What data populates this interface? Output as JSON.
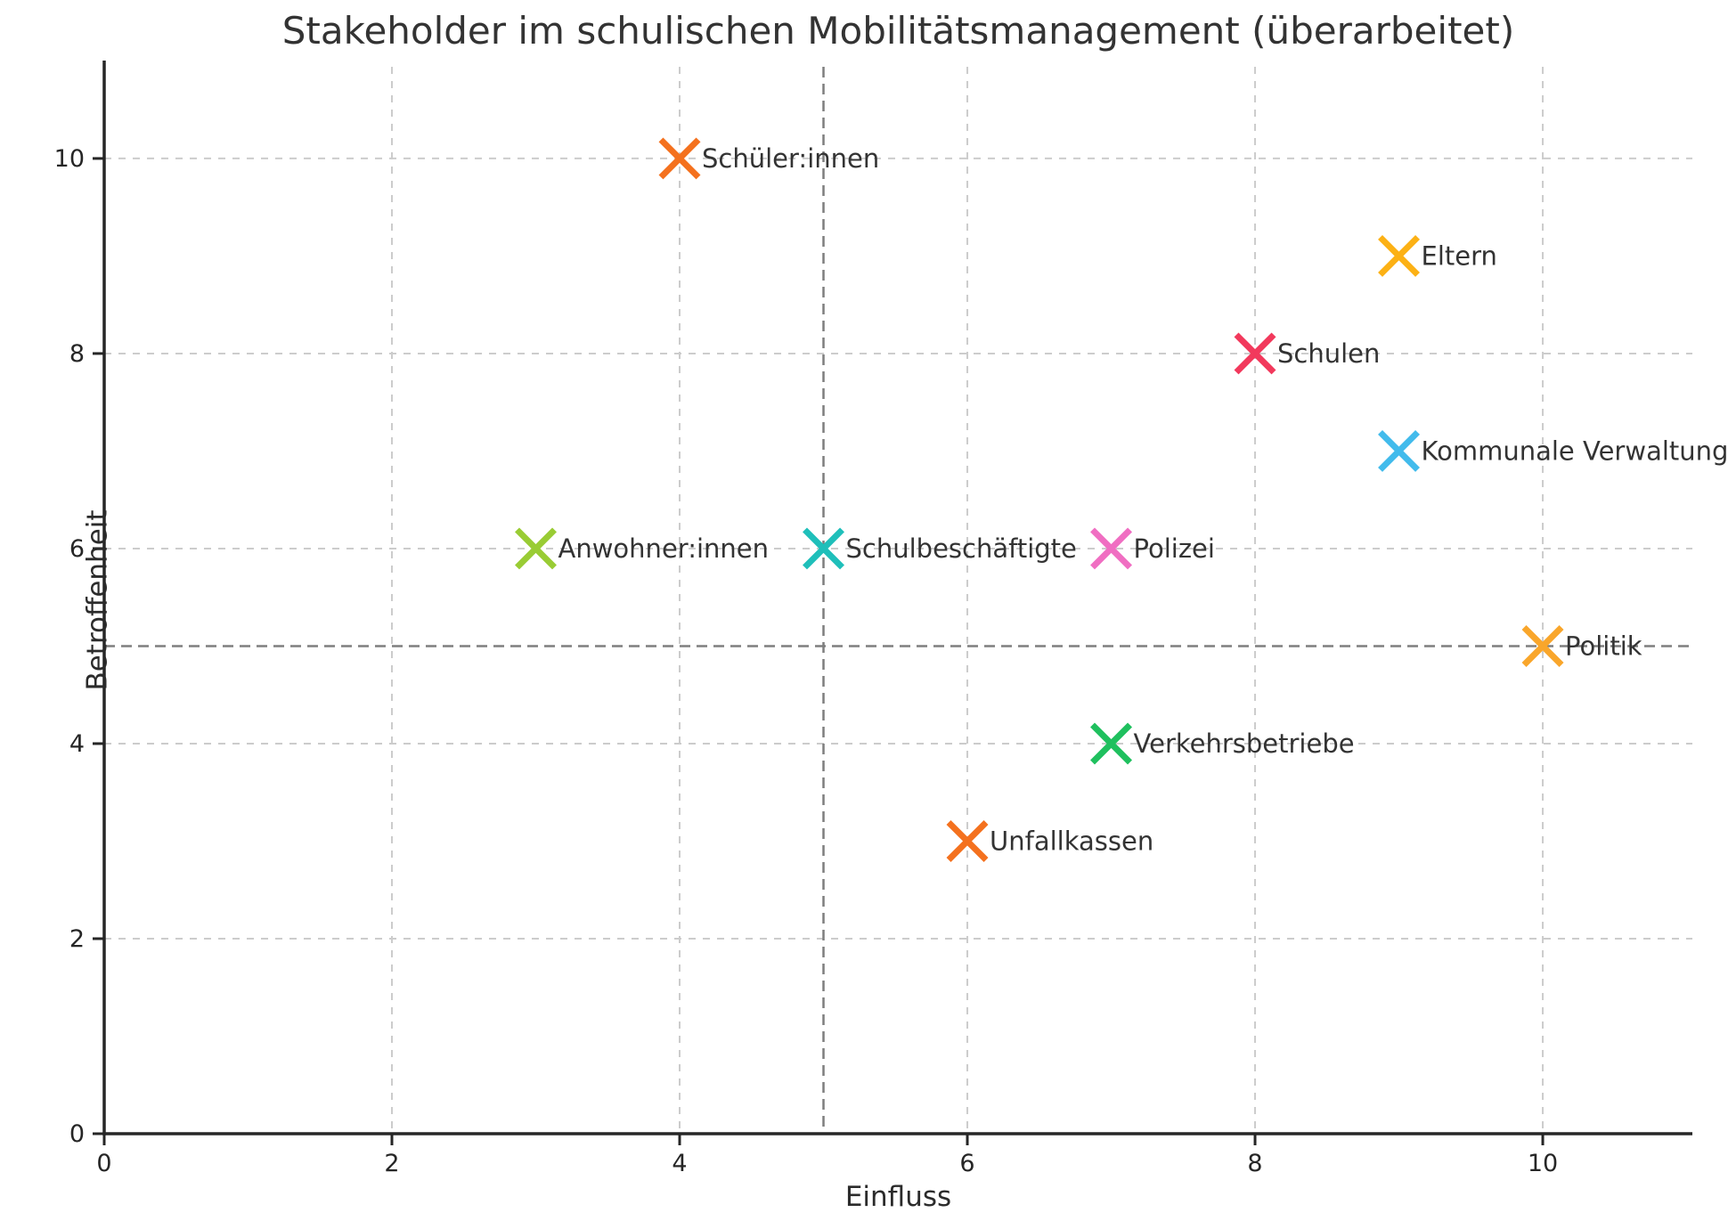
{
  "figure": {
    "title": "Stakeholder im schulischen Mobilitätsmanagement (überarbeitet)",
    "xlabel": "Einfluss",
    "ylabel": "Betroffenheit"
  },
  "chart_data": {
    "type": "scatter",
    "title": "Stakeholder im schulischen Mobilitätsmanagement (überarbeitet)",
    "xlabel": "Einfluss",
    "ylabel": "Betroffenheit",
    "xlim": [
      0,
      11.04
    ],
    "ylim": [
      0,
      10.94
    ],
    "xticks": [
      0,
      2,
      4,
      6,
      8,
      10
    ],
    "yticks": [
      0,
      2,
      4,
      6,
      8,
      10
    ],
    "grid": {
      "on": true,
      "style": "dashed",
      "color": "#cccccc"
    },
    "reference_lines": [
      {
        "axis": "x",
        "value": 5,
        "style": "dashed",
        "color": "#7e7e7e"
      },
      {
        "axis": "y",
        "value": 5,
        "style": "dashed",
        "color": "#7e7e7e"
      }
    ],
    "marker": "x",
    "legend": "none",
    "points": [
      {
        "label": "Schüler:innen",
        "x": 4,
        "y": 10,
        "color": "#F4711E"
      },
      {
        "label": "Eltern",
        "x": 9,
        "y": 9,
        "color": "#FCB115"
      },
      {
        "label": "Schulen",
        "x": 8,
        "y": 8,
        "color": "#F2395C"
      },
      {
        "label": "Kommunale Verwaltung",
        "x": 9,
        "y": 7,
        "color": "#42BBEC"
      },
      {
        "label": "Anwohner:innen",
        "x": 3,
        "y": 6,
        "color": "#99CC34"
      },
      {
        "label": "Schulbeschäftigte",
        "x": 5,
        "y": 6,
        "color": "#1FBFBA"
      },
      {
        "label": "Polizei",
        "x": 7,
        "y": 6,
        "color": "#F06EC2"
      },
      {
        "label": "Politik",
        "x": 10,
        "y": 5,
        "color": "#F9A62B"
      },
      {
        "label": "Verkehrsbetriebe",
        "x": 7,
        "y": 4,
        "color": "#1FC05E"
      },
      {
        "label": "Unfallkassen",
        "x": 6,
        "y": 3,
        "color": "#F4711E"
      }
    ],
    "colors": {
      "text": "#333333",
      "axis": "#262626",
      "grid": "#cccccc",
      "reference": "#7e7e7e"
    }
  }
}
